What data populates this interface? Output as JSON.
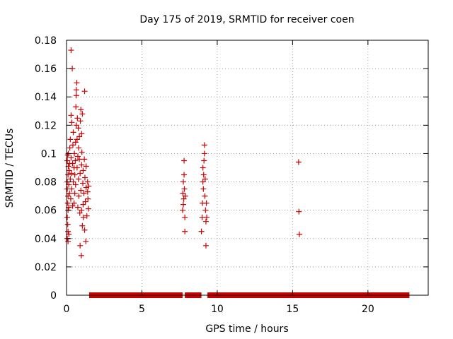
{
  "chart_data": {
    "type": "scatter",
    "title": "Day 175 of 2019, SRMTID for receiver coen",
    "xlabel": "GPS time / hours",
    "ylabel": "SRMTID / TECUs",
    "xlim": [
      0,
      24
    ],
    "ylim": [
      0,
      0.18
    ],
    "xticks": [
      0,
      5,
      10,
      15,
      20
    ],
    "yticks": [
      0,
      0.02,
      0.04,
      0.06,
      0.08,
      0.1,
      0.12,
      0.14,
      0.16,
      0.18
    ],
    "x_tick_labels": [
      "0",
      "5",
      "10",
      "15",
      "20"
    ],
    "y_tick_labels": [
      "0",
      "0.02",
      "0.04",
      "0.06",
      "0.08",
      "0.1",
      "0.12",
      "0.14",
      "0.16",
      "0.18"
    ],
    "grid": true,
    "marker": "+",
    "series": [
      {
        "name": "SRMTID",
        "color": "#cc0000",
        "points": [
          [
            0.05,
            0.04
          ],
          [
            0.05,
            0.055
          ],
          [
            0.05,
            0.075
          ],
          [
            0.05,
            0.08
          ],
          [
            0.05,
            0.095
          ],
          [
            0.07,
            0.099
          ],
          [
            0.08,
            0.05
          ],
          [
            0.08,
            0.065
          ],
          [
            0.1,
            0.038
          ],
          [
            0.1,
            0.045
          ],
          [
            0.1,
            0.06
          ],
          [
            0.1,
            0.07
          ],
          [
            0.1,
            0.085
          ],
          [
            0.12,
            0.091
          ],
          [
            0.12,
            0.1
          ],
          [
            0.15,
            0.043
          ],
          [
            0.15,
            0.062
          ],
          [
            0.15,
            0.078
          ],
          [
            0.18,
            0.088
          ],
          [
            0.2,
            0.072
          ],
          [
            0.2,
            0.093
          ],
          [
            0.22,
            0.104
          ],
          [
            0.25,
            0.11
          ],
          [
            0.25,
            0.082
          ],
          [
            0.28,
            0.068
          ],
          [
            0.3,
            0.127
          ],
          [
            0.3,
            0.097
          ],
          [
            0.3,
            0.173
          ],
          [
            0.32,
            0.086
          ],
          [
            0.35,
            0.122
          ],
          [
            0.35,
            0.075
          ],
          [
            0.38,
            0.16
          ],
          [
            0.4,
            0.093
          ],
          [
            0.4,
            0.063
          ],
          [
            0.42,
            0.106
          ],
          [
            0.45,
            0.08
          ],
          [
            0.45,
            0.115
          ],
          [
            0.5,
            0.09
          ],
          [
            0.5,
            0.065
          ],
          [
            0.52,
            0.1
          ],
          [
            0.55,
            0.085
          ],
          [
            0.55,
            0.072
          ],
          [
            0.58,
            0.095
          ],
          [
            0.6,
            0.108
          ],
          [
            0.6,
            0.078
          ],
          [
            0.62,
            0.133
          ],
          [
            0.65,
            0.141
          ],
          [
            0.65,
            0.12
          ],
          [
            0.65,
            0.145
          ],
          [
            0.68,
            0.15
          ],
          [
            0.7,
            0.11
          ],
          [
            0.7,
            0.09
          ],
          [
            0.72,
            0.125
          ],
          [
            0.75,
            0.098
          ],
          [
            0.75,
            0.062
          ],
          [
            0.78,
            0.118
          ],
          [
            0.8,
            0.082
          ],
          [
            0.8,
            0.104
          ],
          [
            0.82,
            0.07
          ],
          [
            0.85,
            0.096
          ],
          [
            0.85,
            0.112
          ],
          [
            0.88,
            0.058
          ],
          [
            0.9,
            0.086
          ],
          [
            0.9,
            0.035
          ],
          [
            0.92,
            0.123
          ],
          [
            0.95,
            0.131
          ],
          [
            0.95,
            0.074
          ],
          [
            0.98,
            0.028
          ],
          [
            1.0,
            0.114
          ],
          [
            1.0,
            0.092
          ],
          [
            1.0,
            0.06
          ],
          [
            1.02,
            0.101
          ],
          [
            1.05,
            0.128
          ],
          [
            1.05,
            0.049
          ],
          [
            1.08,
            0.079
          ],
          [
            1.1,
            0.088
          ],
          [
            1.1,
            0.064
          ],
          [
            1.12,
            0.055
          ],
          [
            1.15,
            0.072
          ],
          [
            1.18,
            0.096
          ],
          [
            1.2,
            0.144
          ],
          [
            1.2,
            0.046
          ],
          [
            1.22,
            0.083
          ],
          [
            1.25,
            0.066
          ],
          [
            1.28,
            0.038
          ],
          [
            1.3,
            0.091
          ],
          [
            1.3,
            0.076
          ],
          [
            1.35,
            0.056
          ],
          [
            1.4,
            0.073
          ],
          [
            1.4,
            0.08
          ],
          [
            1.42,
            0.068
          ],
          [
            1.45,
            0.061
          ],
          [
            1.47,
            0.077
          ],
          [
            7.7,
            0.06
          ],
          [
            7.72,
            0.072
          ],
          [
            7.75,
            0.08
          ],
          [
            7.75,
            0.064
          ],
          [
            7.78,
            0.068
          ],
          [
            7.8,
            0.095
          ],
          [
            7.8,
            0.085
          ],
          [
            7.82,
            0.075
          ],
          [
            7.85,
            0.055
          ],
          [
            7.85,
            0.045
          ],
          [
            7.88,
            0.07
          ],
          [
            8.95,
            0.045
          ],
          [
            9.0,
            0.055
          ],
          [
            9.02,
            0.065
          ],
          [
            9.05,
            0.08
          ],
          [
            9.05,
            0.09
          ],
          [
            9.08,
            0.075
          ],
          [
            9.1,
            0.085
          ],
          [
            9.12,
            0.095
          ],
          [
            9.15,
            0.1
          ],
          [
            9.15,
            0.106
          ],
          [
            9.18,
            0.07
          ],
          [
            9.2,
            0.082
          ],
          [
            9.22,
            0.06
          ],
          [
            9.25,
            0.052
          ],
          [
            9.25,
            0.035
          ],
          [
            9.28,
            0.065
          ],
          [
            9.3,
            0.055
          ],
          [
            15.4,
            0.094
          ],
          [
            15.42,
            0.059
          ],
          [
            15.45,
            0.043
          ]
        ]
      },
      {
        "name": "baseline",
        "color": "#cc0000",
        "segments": [
          [
            1.5,
            7.7
          ],
          [
            7.85,
            8.95
          ],
          [
            9.35,
            22.75
          ]
        ],
        "value": 0
      }
    ]
  }
}
